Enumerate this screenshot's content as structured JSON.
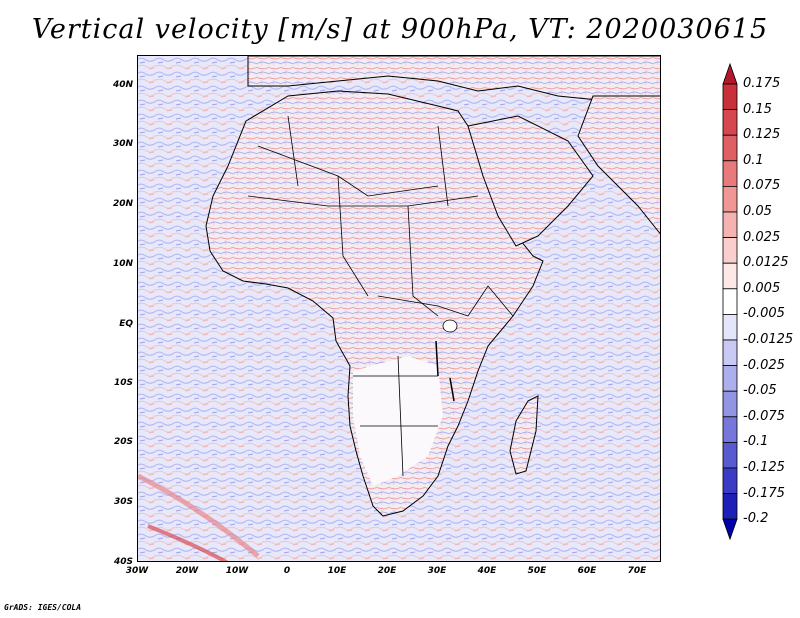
{
  "title": "Vertical velocity [m/s] at 900hPa, VT: 2020030615",
  "map": {
    "lat_labels": [
      "40N",
      "30N",
      "20N",
      "10N",
      "EQ",
      "10S",
      "20S",
      "30S",
      "40S"
    ],
    "lon_labels": [
      "30W",
      "20W",
      "10W",
      "0",
      "10E",
      "20E",
      "30E",
      "40E",
      "50E",
      "60E",
      "70E"
    ],
    "lat_range": [
      -40,
      45
    ],
    "lon_range": [
      -30,
      75
    ]
  },
  "colorbar": {
    "labels": [
      "0.175",
      "0.15",
      "0.125",
      "0.1",
      "0.075",
      "0.05",
      "0.025",
      "0.0125",
      "0.005",
      "-0.005",
      "-0.0125",
      "-0.025",
      "-0.05",
      "-0.075",
      "-0.1",
      "-0.125",
      "-0.175",
      "-0.2"
    ],
    "colors": [
      "#b2182b",
      "#c8303a",
      "#d6474f",
      "#e05f63",
      "#e97a7b",
      "#f09694",
      "#f5b2b0",
      "#f9cecd",
      "#fce8e7",
      "#ffffff",
      "#e4e4fb",
      "#c9c9f4",
      "#adaeed",
      "#9294e4",
      "#7577da",
      "#585bcf",
      "#3a3dc3",
      "#1d1fb6",
      "#0000a8"
    ]
  },
  "credit": "GrADS: IGES/COLA"
}
